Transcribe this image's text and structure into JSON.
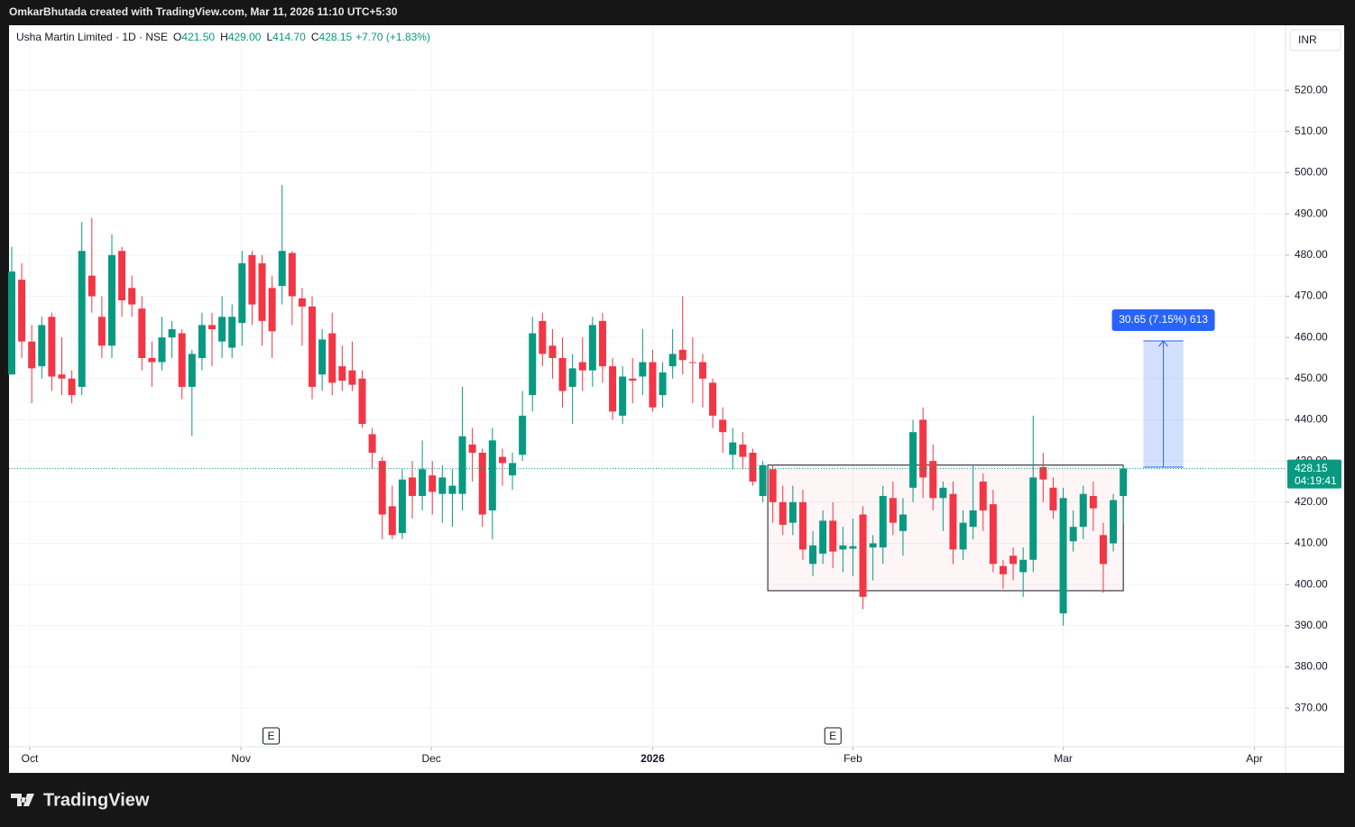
{
  "header": "OmkarBhutada created with TradingView.com, Mar 11, 2026 11:10 UTC+5:30",
  "footer": "TradingView",
  "chart_data": {
    "type": "candlestick",
    "legend": {
      "symbol": "Usha Martin Limited · 1D · NSE",
      "fields": [
        {
          "label": "O",
          "value": "421.50"
        },
        {
          "label": "H",
          "value": "429.00"
        },
        {
          "label": "L",
          "value": "414.70"
        },
        {
          "label": "C",
          "value": "428.15"
        }
      ],
      "change": "+7.70 (+1.83%)"
    },
    "currency": "INR",
    "last_price_label": "428.15",
    "countdown": "04:19:41",
    "up_color": "#089981",
    "down_color": "#f23645",
    "xlim": [
      -0.27,
      127.2
    ],
    "xticks": [
      {
        "value": 1.8,
        "label": "Oct"
      },
      {
        "value": 22.9,
        "label": "Nov"
      },
      {
        "value": 41.9,
        "label": "Dec"
      },
      {
        "value": 64.0,
        "label": "2026"
      },
      {
        "value": 84.0,
        "label": "Feb"
      },
      {
        "value": 105.0,
        "label": "Mar"
      },
      {
        "value": 124.1,
        "label": "Apr"
      }
    ],
    "ylim": [
      354.7,
      535.8
    ],
    "yticks": [
      {
        "value": 370,
        "label": "370.00"
      },
      {
        "value": 380,
        "label": "380.00"
      },
      {
        "value": 390,
        "label": "390.00"
      },
      {
        "value": 400,
        "label": "400.00"
      },
      {
        "value": 410,
        "label": "410.00"
      },
      {
        "value": 420,
        "label": "420.00"
      },
      {
        "value": 430,
        "label": "430.00"
      },
      {
        "value": 440,
        "label": "440.00"
      },
      {
        "value": 450,
        "label": "450.00"
      },
      {
        "value": 460,
        "label": "460.00"
      },
      {
        "value": 470,
        "label": "470.00"
      },
      {
        "value": 480,
        "label": "480.00"
      },
      {
        "value": 490,
        "label": "490.00"
      },
      {
        "value": 500,
        "label": "500.00"
      },
      {
        "value": 510,
        "label": "510.00"
      },
      {
        "value": 520,
        "label": "520.00"
      }
    ],
    "grid": true,
    "events": [
      {
        "x": 25.9,
        "label": "E"
      },
      {
        "x": 82.0,
        "label": "E"
      }
    ],
    "rectangle": {
      "x": [
        75.5,
        111.0
      ],
      "y": [
        398.5,
        429.0
      ]
    },
    "measure": {
      "x": [
        113.0,
        117.0
      ],
      "y": [
        428.5,
        459.15
      ],
      "label": "30.65 (7.15%) 613"
    },
    "open": [
      451,
      474,
      459,
      453,
      465,
      451,
      450,
      448,
      475,
      465,
      458,
      481,
      472,
      467,
      455,
      454,
      460,
      461,
      448,
      455,
      463,
      459,
      457.5,
      463.5,
      480,
      478,
      472,
      472.5,
      480.5,
      469.5,
      467.5,
      451,
      461,
      453,
      452,
      450,
      436.5,
      430,
      419,
      412.5,
      426,
      421.5,
      426.5,
      422,
      422,
      422,
      434,
      432,
      418,
      431,
      426.5,
      431.5,
      446,
      464,
      458,
      455,
      448,
      454,
      452,
      464,
      453,
      441,
      450,
      450.5,
      454,
      446,
      453,
      457,
      454,
      454,
      449,
      440,
      431.5,
      434,
      432,
      421.5,
      428,
      420,
      415,
      420,
      405,
      407.5,
      415.5,
      408.5,
      408.7,
      417,
      409,
      409,
      421,
      413,
      423.5,
      440,
      430,
      421,
      422,
      408.5,
      414,
      425,
      419.5,
      404.5,
      407,
      403,
      406,
      428.5,
      423.5,
      393,
      410.5,
      414,
      421.5,
      412,
      410,
      421.5
    ],
    "high": [
      482,
      478,
      463,
      465,
      466,
      460,
      452,
      488,
      489,
      470,
      485,
      482,
      475,
      470,
      459,
      465,
      464,
      462,
      457,
      466,
      466,
      470,
      468,
      481,
      481,
      480,
      475,
      497,
      481,
      472,
      470,
      462,
      466,
      458,
      459,
      452,
      438,
      431,
      424,
      428,
      430,
      435,
      430,
      429,
      428,
      448,
      438,
      433,
      438,
      433,
      432,
      447,
      465,
      466,
      462,
      460,
      456,
      460,
      465,
      466,
      455,
      453,
      455,
      462,
      457,
      454,
      462,
      470,
      460,
      456,
      450,
      443,
      438,
      437,
      433,
      430,
      429,
      424,
      424,
      423,
      413,
      418,
      420,
      414,
      416,
      419,
      412,
      424,
      425,
      421,
      440,
      443,
      434,
      425,
      425,
      418,
      429,
      427,
      423,
      406,
      409,
      409,
      441,
      432,
      426,
      423.5,
      418,
      424,
      425,
      415,
      422,
      429
    ],
    "low": [
      451,
      455,
      444,
      450,
      447,
      446,
      444,
      446,
      466,
      455,
      455,
      465,
      465,
      452,
      448,
      452,
      455,
      445,
      436,
      452,
      453,
      455,
      455,
      458,
      463,
      458,
      455,
      468,
      463,
      458,
      445,
      447,
      446,
      447,
      447,
      438,
      428,
      411,
      411,
      411,
      416,
      418,
      417,
      415,
      414,
      418,
      425,
      414,
      411,
      424,
      423,
      430,
      442,
      453,
      450,
      443,
      439,
      447,
      448,
      449,
      440,
      439,
      444,
      446,
      442,
      443,
      450,
      451,
      444,
      443,
      438,
      432,
      428,
      428,
      424,
      420,
      415,
      412,
      412,
      406,
      402,
      405,
      404,
      403,
      402,
      394,
      401,
      405,
      412,
      407,
      420,
      421,
      418,
      413,
      405,
      406,
      411,
      413,
      403,
      399,
      401,
      397,
      403,
      420,
      416,
      390,
      408,
      411,
      413,
      398,
      408,
      414.7
    ],
    "close": [
      476,
      459,
      452.5,
      463,
      450.5,
      450,
      446,
      481,
      470,
      458,
      480,
      469,
      468,
      455,
      454,
      460,
      462,
      448,
      456,
      463,
      462,
      465,
      465,
      478,
      468,
      464,
      461.5,
      481,
      470,
      467.5,
      448,
      459.5,
      449,
      449.5,
      448.5,
      439,
      432,
      417,
      412,
      425.5,
      421.5,
      428,
      422.5,
      426,
      424,
      436,
      432,
      417,
      435,
      429.5,
      429.5,
      441,
      461,
      456,
      455,
      447,
      452.5,
      452,
      463,
      453,
      442,
      450.5,
      449.5,
      454,
      443,
      451.5,
      456,
      454.5,
      453.8,
      450,
      441,
      437,
      434.5,
      431,
      425,
      429,
      420,
      414.5,
      420,
      408.5,
      409.5,
      415.5,
      408,
      409.5,
      409.3,
      397,
      410,
      421.5,
      415,
      417,
      437,
      426,
      421,
      423.5,
      408.5,
      415,
      418,
      418,
      405,
      402.5,
      405,
      406,
      426,
      425.5,
      418,
      421,
      414,
      422,
      418.5,
      405,
      420.5,
      428.15
    ]
  }
}
